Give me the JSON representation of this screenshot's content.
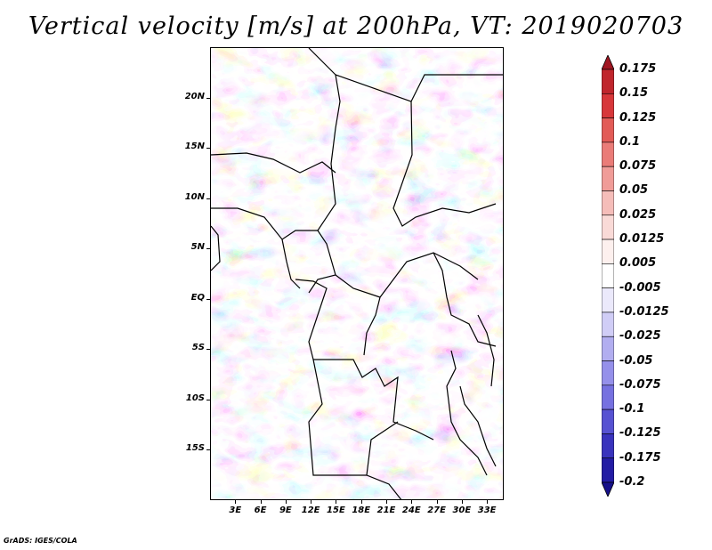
{
  "title": "Vertical velocity [m/s] at 200hPa, VT: 2019020703",
  "credit": "GrADS: IGES/COLA",
  "map": {
    "lat_range": [
      -20,
      25
    ],
    "lon_range": [
      0,
      35
    ],
    "lat_ticks": [
      {
        "value": 20,
        "label": "20N"
      },
      {
        "value": 15,
        "label": "15N"
      },
      {
        "value": 10,
        "label": "10N"
      },
      {
        "value": 5,
        "label": "5N"
      },
      {
        "value": 0,
        "label": "EQ"
      },
      {
        "value": -5,
        "label": "5S"
      },
      {
        "value": -10,
        "label": "10S"
      },
      {
        "value": -15,
        "label": "15S"
      }
    ],
    "lon_ticks": [
      {
        "value": 3,
        "label": "3E"
      },
      {
        "value": 6,
        "label": "6E"
      },
      {
        "value": 9,
        "label": "9E"
      },
      {
        "value": 12,
        "label": "12E"
      },
      {
        "value": 15,
        "label": "15E"
      },
      {
        "value": 18,
        "label": "18E"
      },
      {
        "value": 21,
        "label": "21E"
      },
      {
        "value": 24,
        "label": "24E"
      },
      {
        "value": 27,
        "label": "27E"
      },
      {
        "value": 30,
        "label": "30E"
      },
      {
        "value": 33,
        "label": "33E"
      }
    ]
  },
  "colorbar": {
    "levels": [
      "0.175",
      "0.15",
      "0.125",
      "0.1",
      "0.075",
      "0.05",
      "0.025",
      "0.0125",
      "0.005",
      "-0.005",
      "-0.0125",
      "-0.025",
      "-0.05",
      "-0.075",
      "-0.1",
      "-0.125",
      "-0.175",
      "-0.2"
    ],
    "colors": [
      "#a01622",
      "#c0262d",
      "#d7373a",
      "#e25b57",
      "#ea7c78",
      "#f09c98",
      "#f5bdb9",
      "#f9dad7",
      "#fdf0ee",
      "#ffffff",
      "#ebe9fb",
      "#d0cdf6",
      "#b2aef0",
      "#9590ea",
      "#7671e0",
      "#5752d2",
      "#3933bd",
      "#231ca4",
      "#16108a"
    ]
  }
}
